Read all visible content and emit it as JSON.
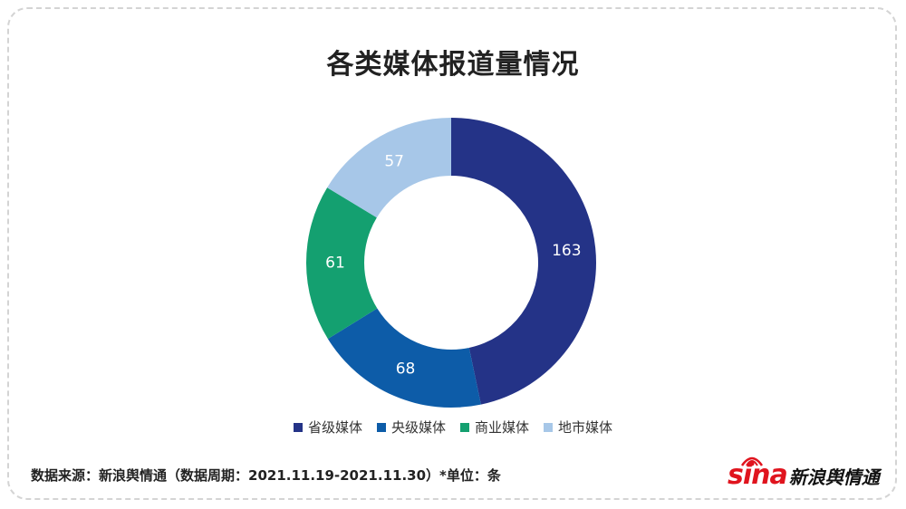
{
  "colors": {
    "provincial": "#243387",
    "central": "#0d5ca8",
    "commercial": "#14a070",
    "local": "#a7c7e8"
  },
  "chart_data": {
    "type": "pie",
    "variant": "donut",
    "title": "各类媒体报道量情况",
    "start_angle": 0,
    "direction": "clockwise",
    "legend_position": "bottom",
    "slices": [
      {
        "name": "省级媒体",
        "value": 163,
        "label": "163",
        "color": "#243387"
      },
      {
        "name": "央级媒体",
        "value": 68,
        "label": "68",
        "color": "#0d5ca8"
      },
      {
        "name": "商业媒体",
        "value": 61,
        "label": "61",
        "color": "#14a070"
      },
      {
        "name": "地市媒体",
        "value": 57,
        "label": "57",
        "color": "#a7c7e8"
      }
    ]
  },
  "footer": {
    "source_text": "数据来源：新浪舆情通（数据周期：2021.11.19-2021.11.30）*单位：条"
  },
  "logo": {
    "latin": "sina",
    "chinese": "新浪舆情通"
  }
}
